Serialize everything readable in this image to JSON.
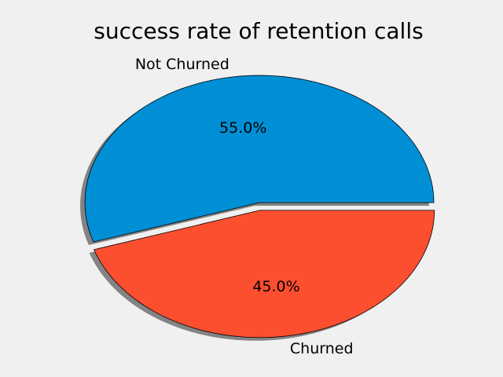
{
  "chart_data": {
    "type": "pie",
    "title": "success rate of retention calls",
    "slices": [
      {
        "label": "Not Churned",
        "value": 55.0,
        "pct_label": "55.0%",
        "color": "#008fd5",
        "exploded": false
      },
      {
        "label": "Churned",
        "value": 45.0,
        "pct_label": "45.0%",
        "color": "#fc4f30",
        "exploded": true
      }
    ],
    "shadow": true,
    "background": "#f0f0f0",
    "edge_color": "#000000"
  }
}
